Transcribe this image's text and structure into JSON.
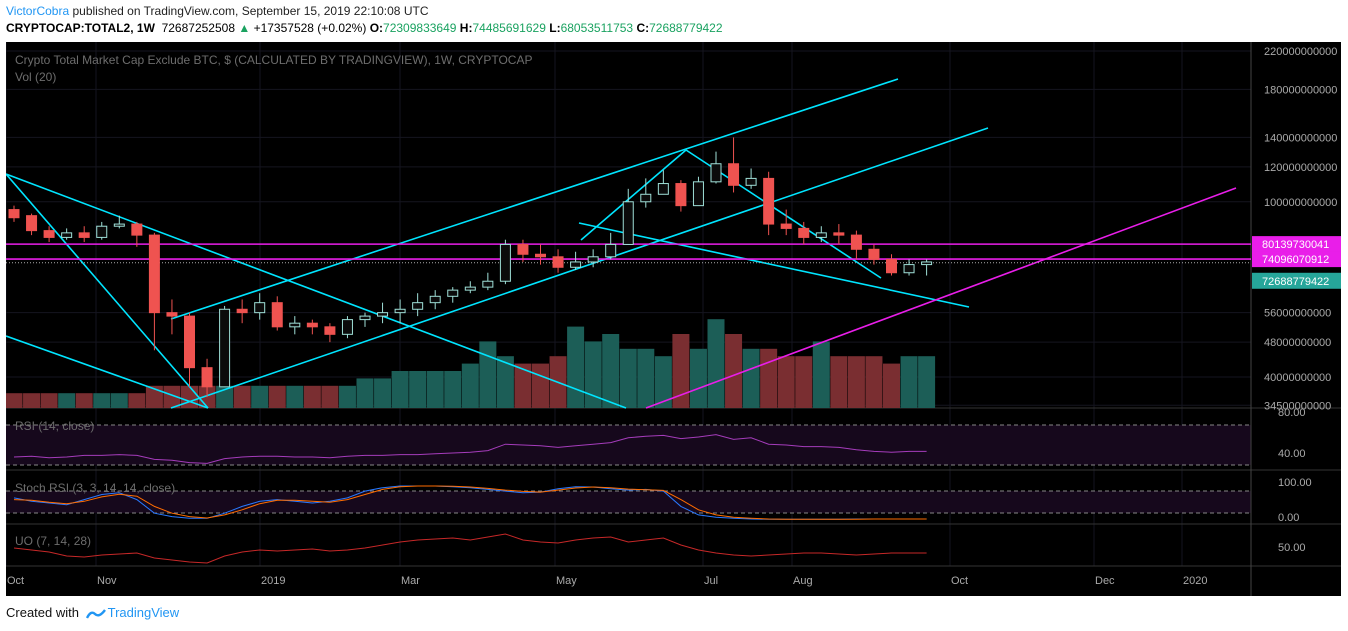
{
  "header": {
    "username": "VictorCobra",
    "published_text": " published on TradingView.com, September 15, 2019 22:10:08 UTC",
    "symbol": "CRYPTOCAP:TOTAL2, 1W",
    "last_value": "72687252508",
    "change_icon": "triangle-up-icon",
    "change": "+17357528 (+0.02%)",
    "o_label": "O:",
    "o_value": "72309833649",
    "h_label": "H:",
    "h_value": "74485691629",
    "l_label": "L:",
    "l_value": "68053511753",
    "c_label": "C:",
    "c_value": "72688779422"
  },
  "chart": {
    "title": "Crypto Total Market Cap Exclude BTC, $ (CALCULATED BY TRADINGVIEW), 1W, CRYPTOCAP",
    "vol_label": "Vol (20)",
    "rsi_label": "RSI (14, close)",
    "stoch_label": "Stoch RSI (3, 3, 14, 14, close)",
    "uo_label": "UO (7, 14, 28)",
    "price_scale": [
      "220000000000",
      "180000000000",
      "140000000000",
      "120000000000",
      "100000000000",
      "56000000000",
      "48000000000",
      "40000000000",
      "34500000000"
    ],
    "price_tags": [
      {
        "text": "80139730041",
        "bg": "#e91ee9"
      },
      {
        "text": "74096070912",
        "bg": "#e91ee9"
      },
      {
        "text": "72688779422",
        "bg": "#26a69a"
      }
    ],
    "rsi_scale": [
      "80.00",
      "40.00"
    ],
    "stoch_scale": [
      "100.00",
      "0.00"
    ],
    "uo_scale": [
      "50.00"
    ],
    "time_axis": [
      "Oct",
      "Nov",
      "2019",
      "Mar",
      "May",
      "Jul",
      "Aug",
      "Oct",
      "Dec",
      "2020"
    ],
    "colors": {
      "up": "#26a69a",
      "down": "#ef5350",
      "cyan": "#00e5ff",
      "magenta": "#e91ee9",
      "background": "#000000"
    }
  },
  "chart_data": {
    "type": "candlestick",
    "interval": "1W",
    "ohlc": [
      [
        96,
        92,
        98,
        90
      ],
      [
        93,
        86,
        94,
        84
      ],
      [
        86,
        83,
        88,
        81
      ],
      [
        83,
        85,
        87,
        82
      ],
      [
        85,
        83,
        88,
        81
      ],
      [
        83,
        88,
        90,
        82
      ],
      [
        88,
        89,
        93,
        87
      ],
      [
        89,
        84,
        90,
        79
      ],
      [
        84,
        56,
        85,
        46
      ],
      [
        56,
        55,
        60,
        50
      ],
      [
        55,
        42,
        56,
        38
      ],
      [
        42,
        38,
        44,
        36
      ],
      [
        38,
        57,
        58,
        38
      ],
      [
        57,
        56,
        60,
        53
      ],
      [
        56,
        59,
        62,
        54
      ],
      [
        59,
        52,
        61,
        51
      ],
      [
        52,
        53,
        55,
        50
      ],
      [
        53,
        52,
        54,
        50
      ],
      [
        52,
        50,
        53,
        48
      ],
      [
        50,
        54,
        55,
        49
      ],
      [
        54,
        55,
        56,
        52
      ],
      [
        55,
        56,
        59,
        53
      ],
      [
        56,
        57,
        60,
        53
      ],
      [
        57,
        59,
        62,
        55
      ],
      [
        59,
        61,
        63,
        57
      ],
      [
        61,
        63,
        64,
        59
      ],
      [
        63,
        64,
        66,
        62
      ],
      [
        64,
        66,
        69,
        63
      ],
      [
        66,
        80,
        82,
        65
      ],
      [
        80,
        76,
        82,
        73
      ],
      [
        76,
        75,
        80,
        72
      ],
      [
        75,
        71,
        78,
        69
      ],
      [
        71,
        73,
        77,
        70
      ],
      [
        73,
        75,
        78,
        71
      ],
      [
        75,
        80,
        85,
        74
      ],
      [
        80,
        100,
        107,
        80
      ],
      [
        100,
        104,
        113,
        97
      ],
      [
        104,
        110,
        118,
        104
      ],
      [
        110,
        98,
        112,
        95
      ],
      [
        98,
        111,
        114,
        98
      ],
      [
        111,
        122,
        130,
        110
      ],
      [
        122,
        109,
        140,
        105
      ],
      [
        109,
        113,
        119,
        107
      ],
      [
        113,
        89,
        117,
        84
      ],
      [
        89,
        87,
        96,
        84
      ],
      [
        87,
        83,
        90,
        80
      ],
      [
        83,
        85,
        88,
        81
      ],
      [
        85,
        84,
        89,
        80
      ],
      [
        84,
        78,
        86,
        74
      ],
      [
        78,
        74,
        80,
        72
      ],
      [
        74,
        69,
        76,
        68
      ],
      [
        69,
        72,
        74,
        68
      ],
      [
        72,
        73,
        74,
        68
      ]
    ],
    "volume": [
      2,
      2,
      2,
      2,
      2,
      2,
      2,
      2,
      3,
      3,
      3,
      3,
      3,
      3,
      3,
      3,
      3,
      3,
      3,
      3,
      4,
      4,
      5,
      5,
      5,
      5,
      6,
      9,
      7,
      6,
      6,
      7,
      11,
      9,
      10,
      8,
      8,
      7,
      10,
      8,
      12,
      10,
      8,
      8,
      7,
      7,
      9,
      7,
      7,
      7,
      6,
      7,
      7
    ],
    "rsi": [
      40,
      41,
      39,
      40,
      42,
      42,
      43,
      42,
      37,
      36,
      33,
      32,
      38,
      40,
      41,
      41,
      40,
      40,
      39,
      41,
      42,
      42,
      43,
      43,
      44,
      45,
      46,
      48,
      56,
      55,
      54,
      52,
      54,
      56,
      58,
      64,
      66,
      67,
      63,
      65,
      68,
      62,
      64,
      56,
      55,
      53,
      53,
      52,
      49,
      47,
      46,
      47,
      47
    ],
    "stoch_rsi": {
      "k": [
        65,
        55,
        50,
        45,
        60,
        75,
        80,
        60,
        20,
        10,
        5,
        5,
        20,
        40,
        55,
        60,
        55,
        50,
        55,
        65,
        85,
        95,
        100,
        100,
        100,
        98,
        95,
        90,
        85,
        80,
        82,
        92,
        98,
        97,
        92,
        88,
        90,
        85,
        40,
        15,
        8,
        5,
        3,
        2,
        2,
        2,
        2,
        2,
        3,
        3,
        3,
        3,
        3
      ],
      "d": [
        60,
        58,
        52,
        48,
        55,
        68,
        76,
        70,
        40,
        20,
        10,
        6,
        15,
        30,
        48,
        58,
        58,
        55,
        52,
        60,
        75,
        90,
        98,
        100,
        100,
        99,
        97,
        93,
        88,
        84,
        82,
        88,
        94,
        97,
        95,
        91,
        89,
        87,
        60,
        30,
        15,
        8,
        5,
        3,
        2,
        2,
        2,
        2,
        2,
        3,
        3,
        3,
        3
      ]
    },
    "uo": [
      52,
      50,
      48,
      44,
      43,
      45,
      46,
      47,
      42,
      40,
      38,
      37,
      44,
      48,
      50,
      49,
      50,
      51,
      49,
      50,
      52,
      55,
      58,
      60,
      61,
      62,
      60,
      63,
      66,
      60,
      58,
      57,
      60,
      62,
      63,
      58,
      60,
      62,
      55,
      50,
      47,
      45,
      44,
      45,
      46,
      47,
      47,
      46,
      45,
      46,
      47,
      47,
      47
    ],
    "levels": {
      "horizontal_1": 80139730041,
      "horizontal_2": 74096070912,
      "last_close": 72688779422
    }
  }
}
